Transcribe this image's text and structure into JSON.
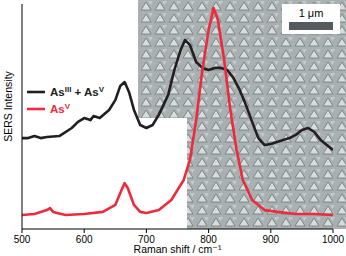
{
  "chart_data": {
    "type": "line",
    "xlabel": "Raman shift / cm⁻¹",
    "ylabel": "SERS Intensity",
    "annotations": [
      "1 μm"
    ],
    "xlim": [
      500,
      1000
    ],
    "xticks": [
      500,
      600,
      700,
      800,
      900,
      1000
    ],
    "ylim": [
      0,
      100
    ],
    "yticks": [],
    "tick_labels": "x",
    "legend": "left",
    "series": [
      {
        "name": "AsIII + AsV",
        "color": "#231f20",
        "x": [
          500,
          510,
          520,
          530,
          540,
          560,
          580,
          590,
          600,
          610,
          615,
          625,
          640,
          650,
          658,
          665,
          672,
          680,
          690,
          700,
          710,
          720,
          735,
          745,
          755,
          762,
          770,
          780,
          790,
          800,
          810,
          820,
          830,
          840,
          850,
          860,
          870,
          880,
          890,
          900,
          910,
          920,
          930,
          940,
          950,
          960,
          970,
          980,
          990,
          1000
        ],
        "values": [
          40.4,
          40.4,
          41.3,
          40.4,
          40.9,
          41.3,
          44.9,
          47.6,
          49.3,
          48.4,
          50.2,
          49.3,
          52.9,
          57.3,
          63.6,
          65.3,
          60.9,
          52.9,
          46.2,
          44.9,
          46.2,
          50.7,
          59.6,
          70.7,
          79.6,
          84,
          81.8,
          74.2,
          71.6,
          70.7,
          71.6,
          71.6,
          70.7,
          67.1,
          61.8,
          55.1,
          47.6,
          40.4,
          37.3,
          37.8,
          38.7,
          39.6,
          40.4,
          41.8,
          44,
          44.9,
          43.1,
          39.6,
          37.3,
          35.1
        ]
      },
      {
        "name": "AsV",
        "color": "#ee2a3c",
        "x": [
          500,
          520,
          540,
          545,
          550,
          570,
          600,
          630,
          650,
          660,
          665,
          670,
          680,
          690,
          700,
          720,
          740,
          760,
          770,
          780,
          790,
          800,
          808,
          815,
          825,
          835,
          845,
          855,
          870,
          890,
          910,
          940,
          970,
          1000
        ],
        "values": [
          6.2,
          6.7,
          8.4,
          9.3,
          7.6,
          6.2,
          6.7,
          7.6,
          10.7,
          17.3,
          20.4,
          18.2,
          10.7,
          7.6,
          7.1,
          8.4,
          12.9,
          21.8,
          30.7,
          48.4,
          70.7,
          88.4,
          98.2,
          92.9,
          75.1,
          52.9,
          35.1,
          21.8,
          12.9,
          8.4,
          7.6,
          6.7,
          6.7,
          6.2
        ]
      }
    ]
  }
}
